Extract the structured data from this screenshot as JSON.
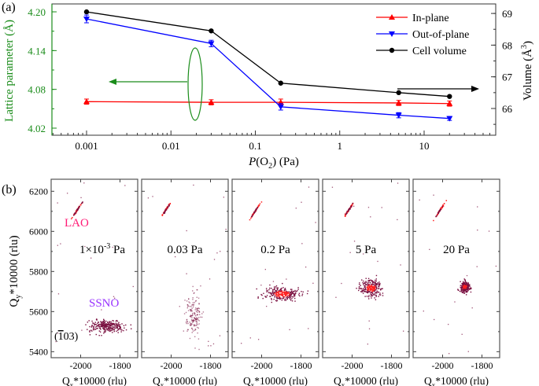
{
  "chart_data": [
    {
      "panel_label": "(a)",
      "type": "line",
      "xlabel": {
        "italic": "P",
        "pre": "(O",
        "sub": "2",
        "post": ") (Pa)"
      },
      "ylabel_left": "Lattice parameter (Å)",
      "ylabel_right": {
        "pre": "Volume (Å",
        "sup": "3",
        "post": ")"
      },
      "x_scale": "log",
      "xlim": [
        0.0004,
        30
      ],
      "ylim_left": [
        4.01,
        4.213
      ],
      "ylim_right": [
        65.4,
        69.5
      ],
      "x_ticks": [
        "0.001",
        "0.01",
        "0.1",
        "1",
        "10"
      ],
      "y_ticks_left": [
        "4.02",
        "4.08",
        "4.14",
        "4.20"
      ],
      "y_ticks_right": [
        "66",
        "67",
        "68",
        "69"
      ],
      "x": [
        0.001,
        0.03,
        0.2,
        5,
        20
      ],
      "series": [
        {
          "name": "In-plane",
          "axis": "left",
          "color": "#ff0000",
          "marker": "triangle-up",
          "values": [
            4.061,
            4.06,
            4.06,
            4.059,
            4.058
          ],
          "error": [
            0.004,
            0.004,
            0.005,
            0.004,
            0.004
          ]
        },
        {
          "name": "Out-of-plane",
          "axis": "left",
          "color": "#0000ff",
          "marker": "triangle-down",
          "values": [
            4.189,
            4.151,
            4.053,
            4.04,
            4.035
          ],
          "error": [
            0.006,
            0.005,
            0.005,
            0.004,
            0.003
          ]
        },
        {
          "name": "Cell volume",
          "axis": "right",
          "color": "#000000",
          "marker": "circle",
          "values": [
            69.05,
            68.45,
            66.8,
            66.5,
            66.38
          ],
          "error": [
            0,
            0,
            0,
            0,
            0
          ]
        }
      ],
      "legend_position": "top-right",
      "annotation_colors": {
        "left_axis": "#1a8c1a",
        "right_axis": "#000000"
      }
    },
    {
      "panel_label": "(b)",
      "type": "scatter",
      "ylabel": {
        "pre": "Q",
        "sub": "y",
        "post": "*10000 (rlu)"
      },
      "xlabel": {
        "pre": "Q",
        "sub": "x",
        "post": "*10000 (rlu)"
      },
      "xlim": [
        -2150,
        -1710
      ],
      "ylim": [
        5370,
        6260
      ],
      "x_ticks": [
        "-2000",
        "-1800"
      ],
      "y_ticks": [
        "5400",
        "5600",
        "5800",
        "6000",
        "6200"
      ],
      "substrate_label": "LAO",
      "film_label": "SSNO",
      "reflection_label": {
        "pre": "(",
        "bar": "1",
        "post": "03)"
      },
      "colors": {
        "substrate_label": "#ff1a75",
        "film_label": "#9933ff",
        "core": "#ff2020",
        "halo": "#7a1040"
      },
      "panels": [
        {
          "pressure": {
            "pre": "1×10",
            "sup": "-3",
            "post": " Pa"
          },
          "substrate_peak": [
            -2020,
            6110
          ],
          "film_peak": [
            -1870,
            5530
          ],
          "film_spread": [
            45,
            15
          ],
          "film_intensity": "low"
        },
        {
          "pressure": {
            "pre": "0.03 Pa",
            "sup": "",
            "post": ""
          },
          "substrate_peak": [
            -2030,
            6110
          ],
          "film_peak": [
            -1890,
            5590
          ],
          "film_spread": [
            20,
            55
          ],
          "film_intensity": "diffuse"
        },
        {
          "pressure": {
            "pre": "0.2 Pa",
            "sup": "",
            "post": ""
          },
          "substrate_peak": [
            -2035,
            6105
          ],
          "film_peak": [
            -1900,
            5690
          ],
          "film_spread": [
            45,
            18
          ],
          "film_intensity": "high"
        },
        {
          "pressure": {
            "pre": "5 Pa",
            "sup": "",
            "post": ""
          },
          "substrate_peak": [
            -2020,
            6110
          ],
          "film_peak": [
            -1905,
            5720
          ],
          "film_spread": [
            28,
            20
          ],
          "film_intensity": "high"
        },
        {
          "pressure": {
            "pre": "20 Pa",
            "sup": "",
            "post": ""
          },
          "substrate_peak": [
            -2015,
            6110
          ],
          "film_peak": [
            -1890,
            5725
          ],
          "film_spread": [
            12,
            12
          ],
          "film_intensity": "high"
        }
      ]
    }
  ]
}
